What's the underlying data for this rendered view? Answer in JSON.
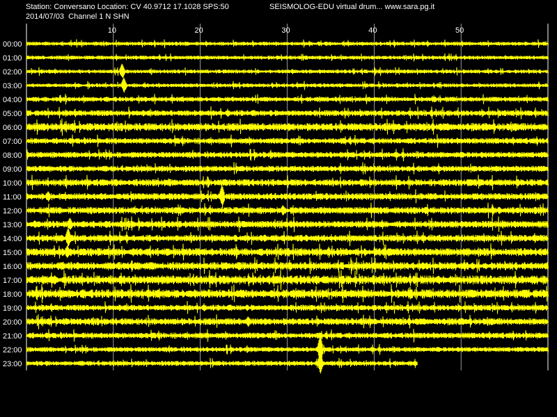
{
  "header": {
    "station_line": "Station: Conversano Location: CV 40.9712 17.1028 SPS:50",
    "title_line": "SEISMOLOG-EDU virtual drum... www.sara.pg.it",
    "date_line": "2014/07/03  Channel 1 N SHN"
  },
  "colors": {
    "background": "#000000",
    "trace": "#ffff00",
    "grid": "#ffffff",
    "text": "#ffffff"
  },
  "chart_data": {
    "type": "line",
    "title": "SEISMOLOG-EDU virtual drum... www.sara.pg.it",
    "xlabel": "",
    "ylabel": "",
    "x_unit_ticks": [
      10,
      20,
      30,
      40,
      50
    ],
    "xlim": [
      0,
      60
    ],
    "grid": true,
    "rows": [
      "00:00",
      "01:00",
      "02:00",
      "03:00",
      "04:00",
      "05:00",
      "06:00",
      "07:00",
      "08:00",
      "09:00",
      "10:00",
      "11:00",
      "12:00",
      "13:00",
      "14:00",
      "15:00",
      "16:00",
      "17:00",
      "18:00",
      "19:00",
      "20:00",
      "21:00",
      "22:00",
      "23:00"
    ],
    "row_noise_amplitude": [
      2,
      2,
      2,
      2,
      2.5,
      3,
      4,
      3,
      3,
      3,
      3.5,
      3.5,
      3.5,
      3.5,
      3.5,
      4,
      4,
      4.5,
      4.5,
      3,
      3.5,
      3,
      2.5,
      2.5
    ],
    "last_row_end_minute": 45,
    "events": [
      {
        "row": "02:00",
        "minute": 11.0,
        "amplitude": 12
      },
      {
        "row": "03:00",
        "minute": 11.2,
        "amplitude": 12
      },
      {
        "row": "11:00",
        "minute": 2.5,
        "amplitude": 8
      },
      {
        "row": "11:00",
        "minute": 22.5,
        "amplitude": 18
      },
      {
        "row": "12:00",
        "minute": 29.5,
        "amplitude": 8
      },
      {
        "row": "13:00",
        "minute": 5.0,
        "amplitude": 10
      },
      {
        "row": "14:00",
        "minute": 4.8,
        "amplitude": 16
      },
      {
        "row": "15:00",
        "minute": 4.7,
        "amplitude": 10
      },
      {
        "row": "20:00",
        "minute": 25.5,
        "amplitude": 8
      },
      {
        "row": "22:00",
        "minute": 33.8,
        "amplitude": 22
      },
      {
        "row": "23:00",
        "minute": 33.8,
        "amplitude": 16
      }
    ]
  }
}
